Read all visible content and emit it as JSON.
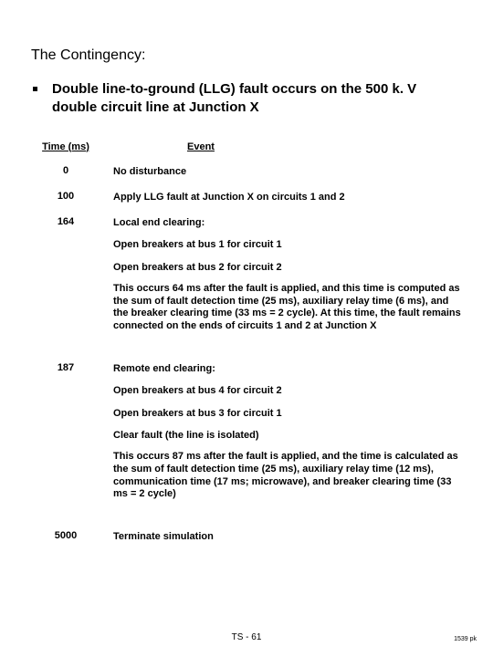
{
  "title": "The Contingency:",
  "bullet": "Double line-to-ground (LLG) fault occurs on the 500 k. V double circuit line at Junction X",
  "headers": {
    "time": "Time (ms)",
    "event": "Event"
  },
  "rows": [
    {
      "time": "0",
      "event_lines": [
        "No disturbance"
      ]
    },
    {
      "time": "100",
      "event_lines": [
        "Apply LLG fault at Junction X on circuits 1 and 2"
      ]
    },
    {
      "time": "164",
      "event_lines": [
        "Local end clearing:"
      ],
      "sub_lines": [
        "Open breakers at bus 1 for circuit 1",
        "Open breakers at bus 2 for circuit 2"
      ],
      "para": "This occurs 64 ms after the fault is applied, and this time is computed as the sum of fault detection time (25 ms), auxiliary relay time (6 ms), and the breaker clearing time (33 ms = 2 cycle). At this time, the fault remains connected on the ends of circuits 1 and 2 at Junction X"
    },
    {
      "time": "187",
      "event_lines": [
        "Remote end clearing:"
      ],
      "sub_lines": [
        "Open breakers at bus 4 for circuit 2",
        "Open breakers at bus 3 for circuit 1",
        "Clear fault (the line is isolated)"
      ],
      "para": "This occurs 87 ms after the fault is applied, and the time is calculated as the sum of fault detection time (25 ms), auxiliary relay time (12 ms), communication time (17 ms; microwave), and breaker clearing time (33 ms = 2 cycle)"
    },
    {
      "time": "5000",
      "event_lines": [
        "Terminate simulation"
      ]
    }
  ],
  "footer": {
    "page": "TS - 61",
    "right": "1539 pk"
  }
}
